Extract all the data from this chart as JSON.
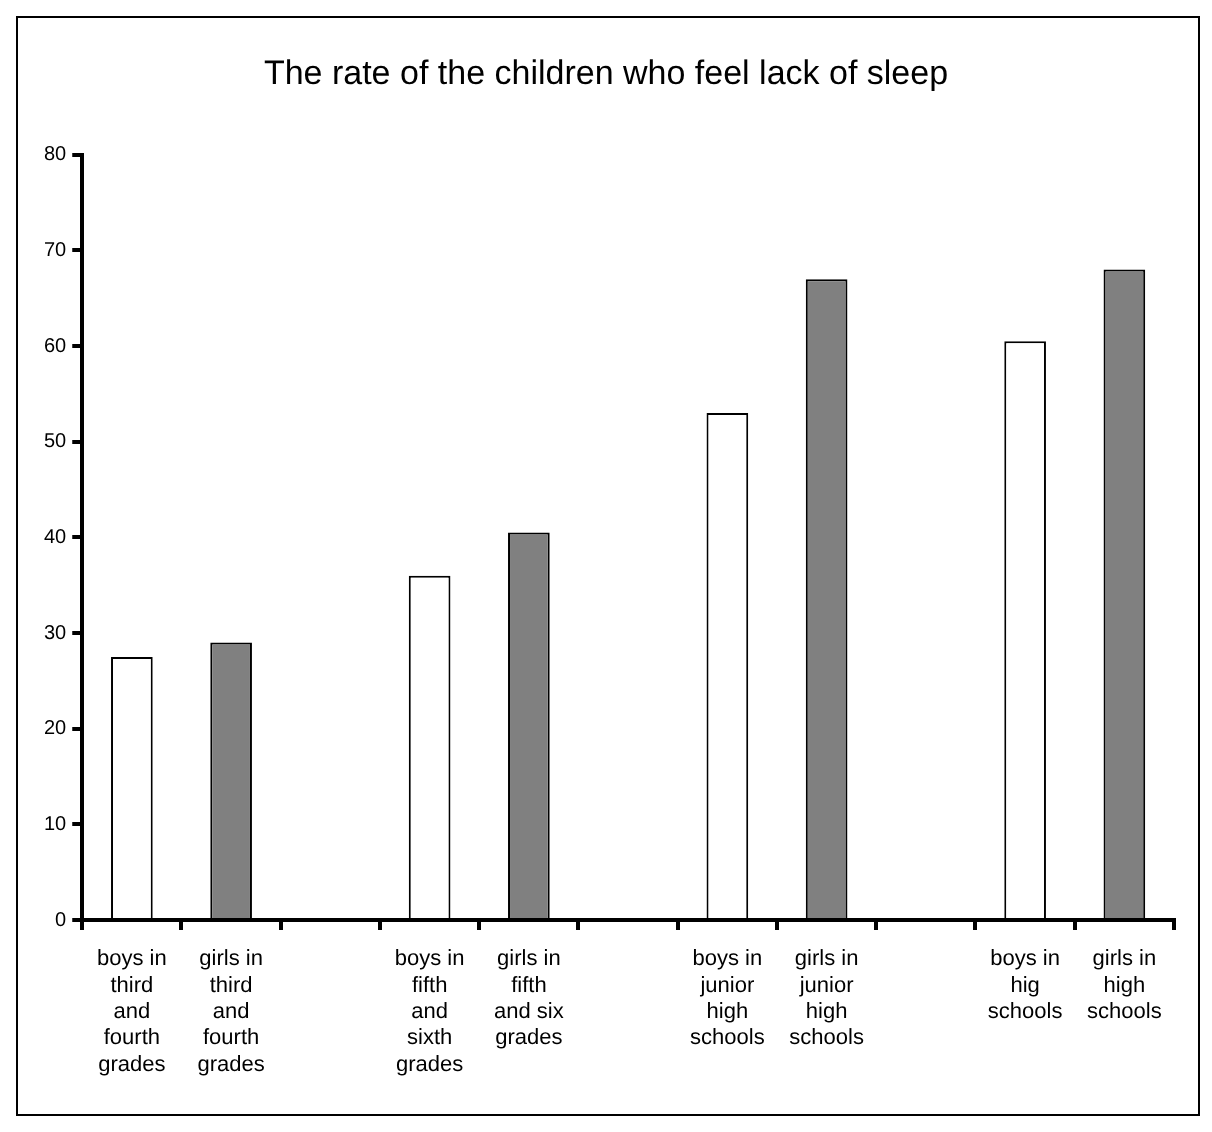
{
  "chart_data": {
    "type": "bar",
    "title": "The rate of the children who feel lack of sleep",
    "categories": [
      "boys in third and fourth grades",
      "girls in third and fourth grades",
      null,
      "boys in fifth and sixth grades",
      "girls in fifth and six grades",
      null,
      "boys in junior high schools",
      "girls in junior high schools",
      null,
      "boys in hig schools",
      "girls in high schools"
    ],
    "values": [
      27.5,
      29,
      null,
      36,
      40.5,
      null,
      53,
      67,
      null,
      60.5,
      68
    ],
    "colors": [
      "#ffffff",
      "#808080",
      "#ffffff",
      "#ffffff",
      "#808080",
      "#ffffff",
      "#ffffff",
      "#808080",
      "#ffffff",
      "#ffffff",
      "#808080"
    ],
    "ylim": [
      0,
      80
    ],
    "yticks": [
      0,
      10,
      20,
      30,
      40,
      50,
      60,
      70,
      80
    ]
  }
}
